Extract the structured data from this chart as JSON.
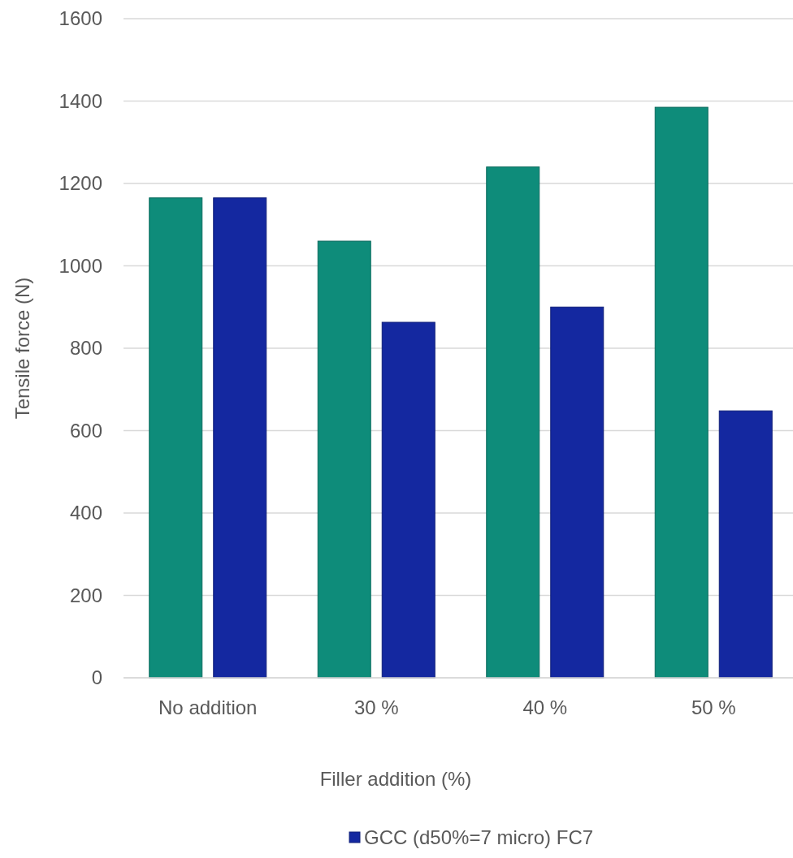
{
  "chart_data": {
    "type": "bar",
    "xlabel": "Filler addition (%)",
    "ylabel": "Tensile force (N)",
    "categories": [
      "No addition",
      "30 %",
      "40 %",
      "50 %"
    ],
    "series": [
      {
        "color": "#0e8c7a",
        "values": [
          1165,
          1060,
          1240,
          1385
        ]
      },
      {
        "name": "GCC (d50%=7 micro) FC7",
        "color": "#1428a0",
        "values": [
          1165,
          863,
          900,
          648
        ]
      }
    ],
    "ylim": [
      0,
      1600
    ],
    "yticks": [
      0,
      200,
      400,
      600,
      800,
      1000,
      1200,
      1400,
      1600
    ],
    "grid": "y",
    "legend": "bottom"
  }
}
